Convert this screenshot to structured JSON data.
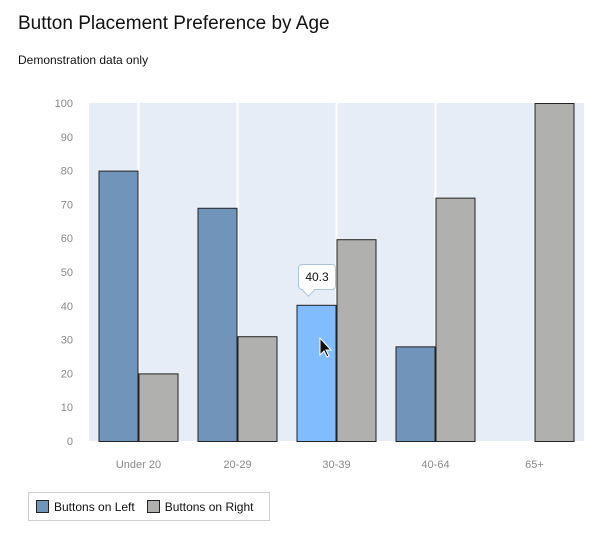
{
  "chart_data": {
    "type": "bar",
    "title": "Button Placement Preference by Age",
    "subtitle": "Demonstration data only",
    "categories": [
      "Under 20",
      "20-29",
      "30-39",
      "40-64",
      "65+"
    ],
    "series": [
      {
        "name": "Buttons on Left",
        "values": [
          80,
          69,
          40.3,
          28,
          0
        ],
        "color": "#7194bb"
      },
      {
        "name": "Buttons on Right",
        "values": [
          20,
          31,
          59.7,
          72,
          100
        ],
        "color": "#b0b0ae"
      }
    ],
    "ylim": [
      0,
      100
    ],
    "yticks": [
      0,
      10,
      20,
      30,
      40,
      50,
      60,
      70,
      80,
      90,
      100
    ],
    "grid": true,
    "legend": "bottom-left",
    "highlight": {
      "series": 0,
      "category": 2,
      "color": "#80bcff",
      "tooltip": "40.3"
    },
    "background": "#e6edf6"
  }
}
